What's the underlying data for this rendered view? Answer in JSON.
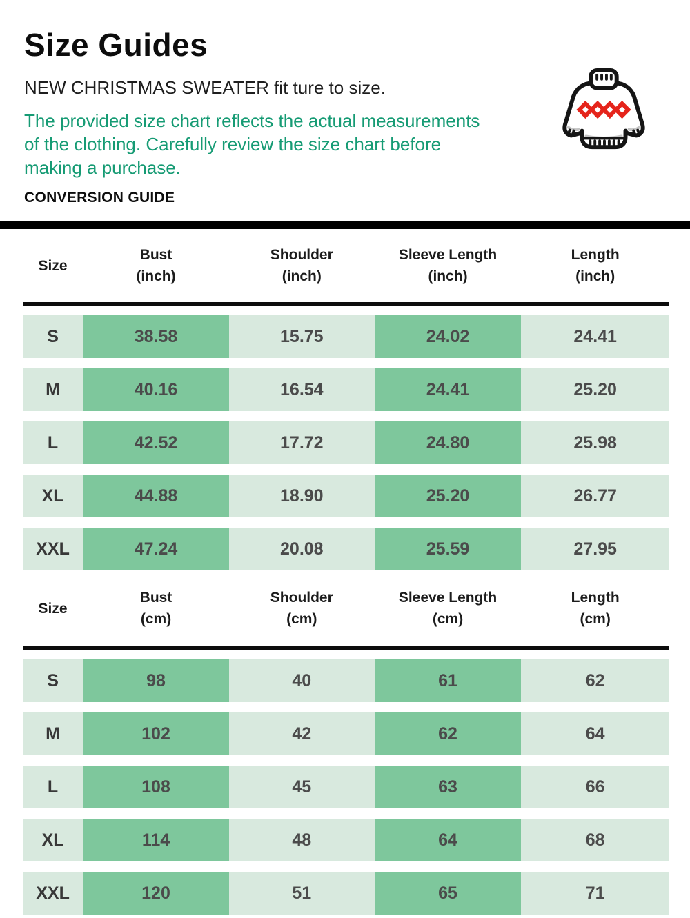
{
  "header": {
    "title": "Size Guides",
    "fit_note": "NEW CHRISTMAS SWEATER fit ture to size.",
    "description_lines": [
      "The provided size chart reflects the actual measurements",
      "of the clothing. Carefully review the size chart before",
      "making a purchase."
    ],
    "conversion_label": "CONVERSION GUIDE",
    "icon": "christmas-sweater-icon"
  },
  "colors": {
    "green_text": "#169b74",
    "cell_dark_green": "#7ec79c",
    "cell_light_green": "#d8e9de",
    "diamond_red": "#e5241b",
    "divider_black": "#000000"
  },
  "tables": [
    {
      "unit": "inch",
      "columns": [
        {
          "label": "Size",
          "sub": ""
        },
        {
          "label": "Bust",
          "sub": "(inch)"
        },
        {
          "label": "Shoulder",
          "sub": "(inch)"
        },
        {
          "label": "Sleeve Length",
          "sub": "(inch)"
        },
        {
          "label": "Length",
          "sub": "(inch)"
        }
      ],
      "rows": [
        {
          "size": "S",
          "values": [
            "38.58",
            "15.75",
            "24.02",
            "24.41"
          ]
        },
        {
          "size": "M",
          "values": [
            "40.16",
            "16.54",
            "24.41",
            "25.20"
          ]
        },
        {
          "size": "L",
          "values": [
            "42.52",
            "17.72",
            "24.80",
            "25.98"
          ]
        },
        {
          "size": "XL",
          "values": [
            "44.88",
            "18.90",
            "25.20",
            "26.77"
          ]
        },
        {
          "size": "XXL",
          "values": [
            "47.24",
            "20.08",
            "25.59",
            "27.95"
          ]
        }
      ]
    },
    {
      "unit": "cm",
      "columns": [
        {
          "label": "Size",
          "sub": ""
        },
        {
          "label": "Bust",
          "sub": "(cm)"
        },
        {
          "label": "Shoulder",
          "sub": "(cm)"
        },
        {
          "label": "Sleeve Length",
          "sub": "(cm)"
        },
        {
          "label": "Length",
          "sub": "(cm)"
        }
      ],
      "rows": [
        {
          "size": "S",
          "values": [
            "98",
            "40",
            "61",
            "62"
          ]
        },
        {
          "size": "M",
          "values": [
            "102",
            "42",
            "62",
            "64"
          ]
        },
        {
          "size": "L",
          "values": [
            "108",
            "45",
            "63",
            "66"
          ]
        },
        {
          "size": "XL",
          "values": [
            "114",
            "48",
            "64",
            "68"
          ]
        },
        {
          "size": "XXL",
          "values": [
            "120",
            "51",
            "65",
            "71"
          ]
        }
      ]
    }
  ]
}
